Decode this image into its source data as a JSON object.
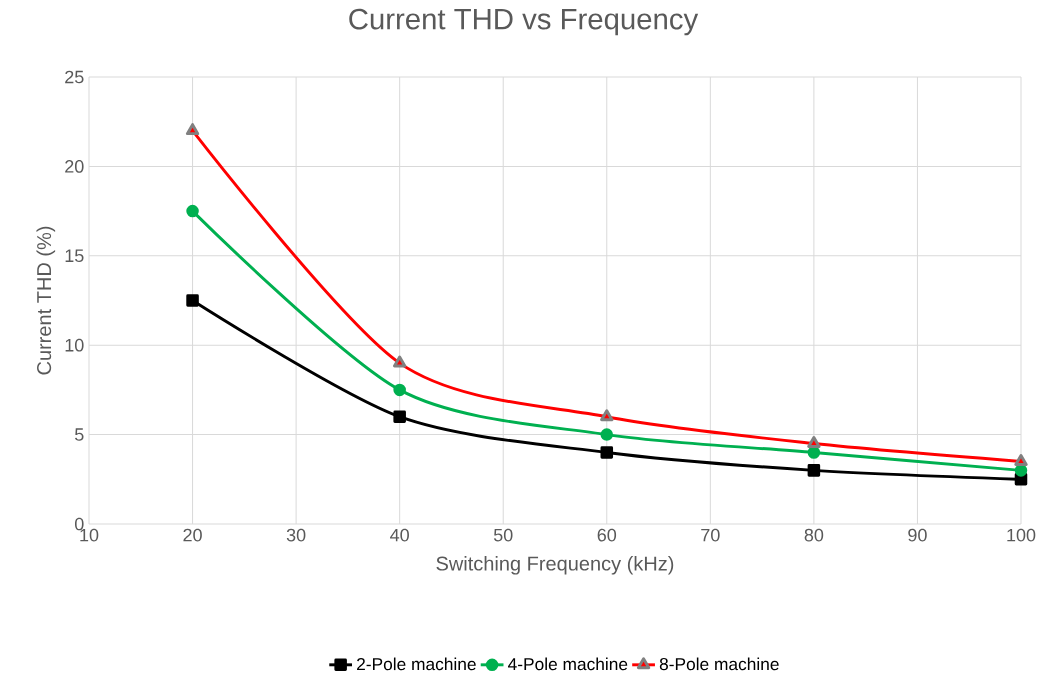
{
  "chart_data": {
    "type": "line",
    "title": "Current THD vs Frequency",
    "xlabel": "Switching Frequency (kHz)",
    "ylabel": "Current THD (%)",
    "x": [
      20,
      40,
      60,
      80,
      100
    ],
    "series": [
      {
        "name": "2-Pole machine",
        "color": "#000000",
        "marker": "square",
        "values": [
          12.5,
          6,
          4,
          3,
          2.5
        ]
      },
      {
        "name": "4-Pole machine",
        "color": "#00b050",
        "marker": "circle",
        "values": [
          17.5,
          7.5,
          5,
          4,
          3
        ]
      },
      {
        "name": "8-Pole machine",
        "color": "#ff0000",
        "marker": "triangle",
        "values": [
          22,
          9,
          6,
          4.5,
          3.5
        ]
      }
    ],
    "xlim": [
      10,
      100
    ],
    "ylim": [
      0,
      25
    ],
    "xticks": [
      10,
      20,
      30,
      40,
      50,
      60,
      70,
      80,
      90,
      100
    ],
    "yticks": [
      0,
      5,
      10,
      15,
      20,
      25
    ],
    "grid": true,
    "legend": "bottom",
    "line_style": "solid"
  }
}
